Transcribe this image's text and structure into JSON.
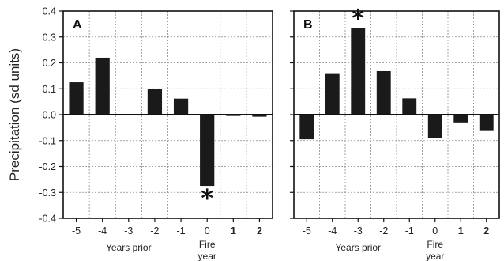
{
  "chart_data": [
    {
      "type": "bar",
      "panel_label": "A",
      "categories": [
        "-5",
        "-4",
        "-3",
        "-2",
        "-1",
        "0",
        "1",
        "2"
      ],
      "bold_categories": [
        "1",
        "2"
      ],
      "values": [
        0.125,
        0.22,
        0.003,
        0.1,
        0.062,
        -0.275,
        -0.005,
        -0.008
      ],
      "ylim": [
        -0.4,
        0.4
      ],
      "yticks": [
        "0.4",
        "0.3",
        "0.2",
        "0.1",
        "0.0",
        "-0.1",
        "-0.2",
        "-0.3",
        "-0.4"
      ],
      "grid": true,
      "significant_category": "0",
      "significance_marker": "*",
      "x_captions": {
        "years_prior": "Years prior",
        "fire_line1": "Fire",
        "fire_line2": "year"
      }
    },
    {
      "type": "bar",
      "panel_label": "B",
      "categories": [
        "-5",
        "-4",
        "-3",
        "-2",
        "-1",
        "0",
        "1",
        "2"
      ],
      "bold_categories": [
        "1",
        "2"
      ],
      "values": [
        -0.095,
        0.16,
        0.335,
        0.168,
        0.063,
        -0.09,
        -0.03,
        -0.06
      ],
      "ylim": [
        -0.4,
        0.4
      ],
      "yticks": [
        "0.4",
        "0.3",
        "0.2",
        "0.1",
        "0.0",
        "-0.1",
        "-0.2",
        "-0.3",
        "-0.4"
      ],
      "grid": true,
      "significant_category": "-3",
      "significance_marker": "*",
      "x_captions": {
        "years_prior": "Years prior",
        "fire_line1": "Fire",
        "fire_line2": "year"
      }
    }
  ],
  "ylabel": "Precipitation (sd units)",
  "colors": {
    "bar": "#1a1a1a",
    "grid": "#8a8a8a",
    "axis": "#111111"
  }
}
